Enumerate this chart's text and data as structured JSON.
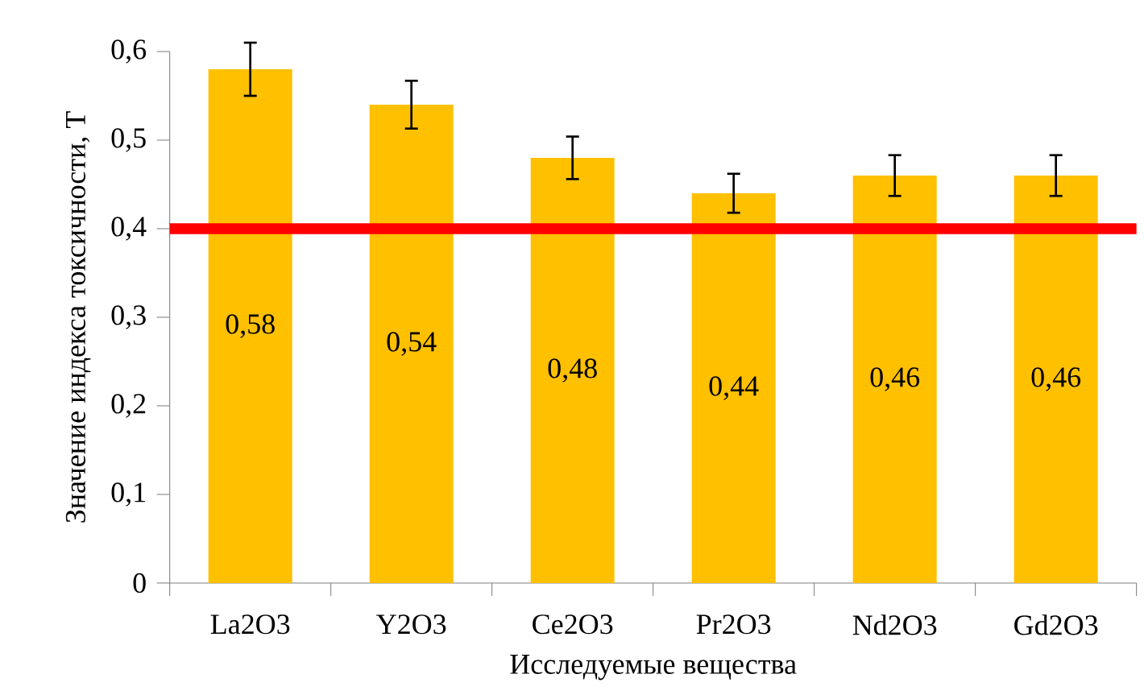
{
  "chart_data": {
    "type": "bar",
    "xlabel": "Исследуемые вещества",
    "ylabel": "Значение индекса токсичности, Т",
    "categories": [
      "La2O3",
      "Y2O3",
      "Ce2O3",
      "Pr2O3",
      "Nd2O3",
      "Gd2O3"
    ],
    "values": [
      0.58,
      0.54,
      0.48,
      0.44,
      0.46,
      0.46
    ],
    "errors": [
      0.03,
      0.027,
      0.024,
      0.022,
      0.023,
      0.023
    ],
    "value_labels": [
      "0,58",
      "0,54",
      "0,48",
      "0,44",
      "0,46",
      "0,46"
    ],
    "color": "#ffc000",
    "ylim": [
      0,
      0.6
    ],
    "yticks": [
      0,
      {
        "value": 0.1,
        "label": "0,1"
      },
      {
        "value": 0.2,
        "label": "0,2"
      },
      {
        "value": 0.3,
        "label": "0,3"
      },
      {
        "value": 0.4,
        "label": "0,4"
      },
      {
        "value": 0.5,
        "label": "0,5"
      },
      {
        "value": 0.6,
        "label": "0,6"
      }
    ],
    "ref_lines": [
      {
        "axis": "y",
        "value": 0.4,
        "color": "#ff0000"
      }
    ]
  }
}
